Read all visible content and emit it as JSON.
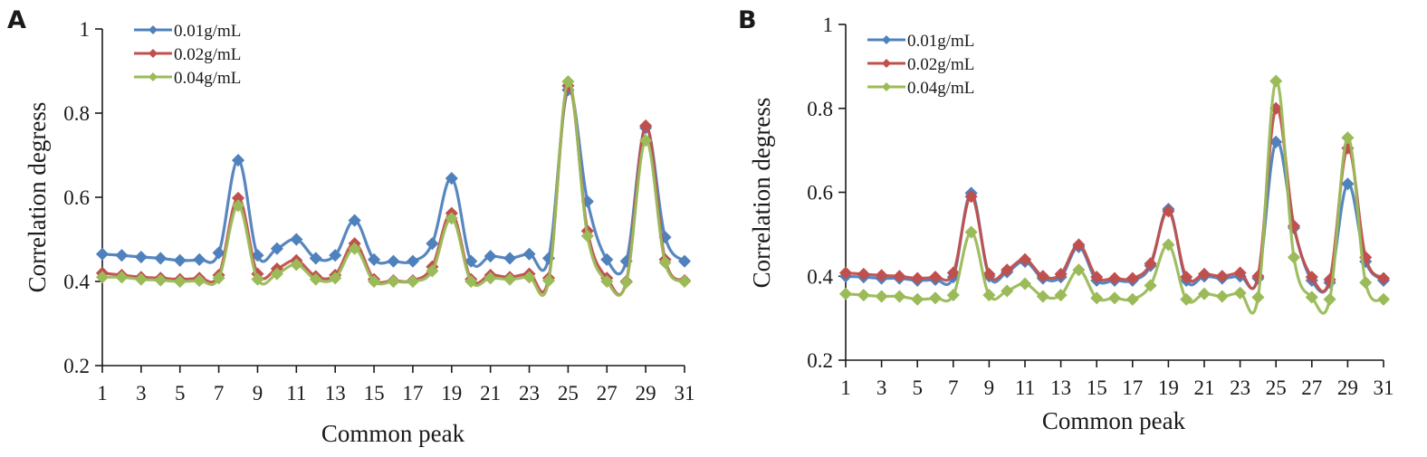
{
  "chart_data": [
    {
      "panel": "A",
      "type": "line",
      "title": "",
      "xlabel": "Common peak",
      "ylabel": "Correlation  degress",
      "ylim": [
        0.2,
        1.0
      ],
      "xlim": [
        1,
        31
      ],
      "yticks": [
        "0.2",
        "0.4",
        "0.6",
        "0.8",
        "1"
      ],
      "ytick_values": [
        0.2,
        0.4,
        0.6,
        0.8,
        1.0
      ],
      "xtick_values": [
        1,
        3,
        5,
        7,
        9,
        11,
        13,
        15,
        17,
        19,
        21,
        23,
        25,
        27,
        29,
        31
      ],
      "xticks": [
        "1",
        "3",
        "5",
        "7",
        "9",
        "11",
        "13",
        "15",
        "17",
        "19",
        "21",
        "23",
        "25",
        "27",
        "29",
        "31"
      ],
      "legend_position": "top-left",
      "grid": false,
      "x": [
        1,
        2,
        3,
        4,
        5,
        6,
        7,
        8,
        9,
        10,
        11,
        12,
        13,
        14,
        15,
        16,
        17,
        18,
        19,
        20,
        21,
        22,
        23,
        24,
        25,
        26,
        27,
        28,
        29,
        30,
        31
      ],
      "series": [
        {
          "name": "0.01g/mL",
          "color": "#4F81BD",
          "values": [
            0.465,
            0.462,
            0.458,
            0.455,
            0.45,
            0.452,
            0.468,
            0.688,
            0.462,
            0.478,
            0.5,
            0.455,
            0.462,
            0.545,
            0.452,
            0.448,
            0.448,
            0.49,
            0.645,
            0.448,
            0.46,
            0.455,
            0.465,
            0.455,
            0.855,
            0.59,
            0.452,
            0.448,
            0.765,
            0.505,
            0.448
          ]
        },
        {
          "name": "0.02g/mL",
          "color": "#C0504D",
          "values": [
            0.42,
            0.415,
            0.41,
            0.408,
            0.405,
            0.408,
            0.415,
            0.598,
            0.418,
            0.43,
            0.45,
            0.412,
            0.415,
            0.49,
            0.405,
            0.402,
            0.402,
            0.435,
            0.562,
            0.405,
            0.415,
            0.41,
            0.418,
            0.408,
            0.865,
            0.52,
            0.408,
            0.4,
            0.77,
            0.452,
            0.402
          ]
        },
        {
          "name": "0.04g/mL",
          "color": "#9BBB59",
          "values": [
            0.41,
            0.41,
            0.405,
            0.403,
            0.4,
            0.402,
            0.408,
            0.58,
            0.405,
            0.418,
            0.44,
            0.405,
            0.408,
            0.478,
            0.4,
            0.4,
            0.4,
            0.425,
            0.55,
            0.4,
            0.408,
            0.405,
            0.41,
            0.402,
            0.875,
            0.508,
            0.4,
            0.398,
            0.735,
            0.445,
            0.4
          ]
        }
      ]
    },
    {
      "panel": "B",
      "type": "line",
      "title": "",
      "xlabel": "Common peak",
      "ylabel": "Correlation  degress",
      "ylim": [
        0.2,
        1.0
      ],
      "xlim": [
        1,
        31
      ],
      "yticks": [
        "0.2",
        "0.4",
        "0.6",
        "0.8",
        "1"
      ],
      "ytick_values": [
        0.2,
        0.4,
        0.6,
        0.8,
        1.0
      ],
      "xtick_values": [
        1,
        3,
        5,
        7,
        9,
        11,
        13,
        15,
        17,
        19,
        21,
        23,
        25,
        27,
        29,
        31
      ],
      "xticks": [
        "1",
        "3",
        "5",
        "7",
        "9",
        "11",
        "13",
        "15",
        "17",
        "19",
        "21",
        "23",
        "25",
        "27",
        "29",
        "31"
      ],
      "legend_position": "top-left",
      "grid": false,
      "x": [
        1,
        2,
        3,
        4,
        5,
        6,
        7,
        8,
        9,
        10,
        11,
        12,
        13,
        14,
        15,
        16,
        17,
        18,
        19,
        20,
        21,
        22,
        23,
        24,
        25,
        26,
        27,
        28,
        29,
        30,
        31
      ],
      "series": [
        {
          "name": "0.01g/mL",
          "color": "#4F81BD",
          "values": [
            0.4,
            0.398,
            0.395,
            0.395,
            0.39,
            0.392,
            0.398,
            0.598,
            0.4,
            0.41,
            0.435,
            0.395,
            0.398,
            0.47,
            0.39,
            0.39,
            0.39,
            0.425,
            0.56,
            0.39,
            0.4,
            0.395,
            0.4,
            0.395,
            0.72,
            0.515,
            0.39,
            0.385,
            0.62,
            0.435,
            0.39
          ]
        },
        {
          "name": "0.02g/mL",
          "color": "#C0504D",
          "values": [
            0.408,
            0.405,
            0.402,
            0.4,
            0.395,
            0.398,
            0.408,
            0.59,
            0.405,
            0.415,
            0.44,
            0.4,
            0.405,
            0.475,
            0.398,
            0.395,
            0.395,
            0.43,
            0.555,
            0.398,
            0.405,
            0.4,
            0.408,
            0.4,
            0.8,
            0.52,
            0.398,
            0.392,
            0.705,
            0.445,
            0.395
          ]
        },
        {
          "name": "0.04g/mL",
          "color": "#9BBB59",
          "values": [
            0.358,
            0.355,
            0.352,
            0.352,
            0.345,
            0.348,
            0.355,
            0.505,
            0.355,
            0.365,
            0.382,
            0.352,
            0.355,
            0.415,
            0.348,
            0.348,
            0.345,
            0.378,
            0.475,
            0.345,
            0.358,
            0.352,
            0.36,
            0.35,
            0.865,
            0.445,
            0.35,
            0.345,
            0.73,
            0.385,
            0.345
          ]
        }
      ]
    }
  ],
  "panels": [
    {
      "label": "A",
      "ylabel": "Correlation  degress",
      "xlabel": "Common peak"
    },
    {
      "label": "B",
      "ylabel": "Correlation  degress",
      "xlabel": "Common peak"
    }
  ]
}
